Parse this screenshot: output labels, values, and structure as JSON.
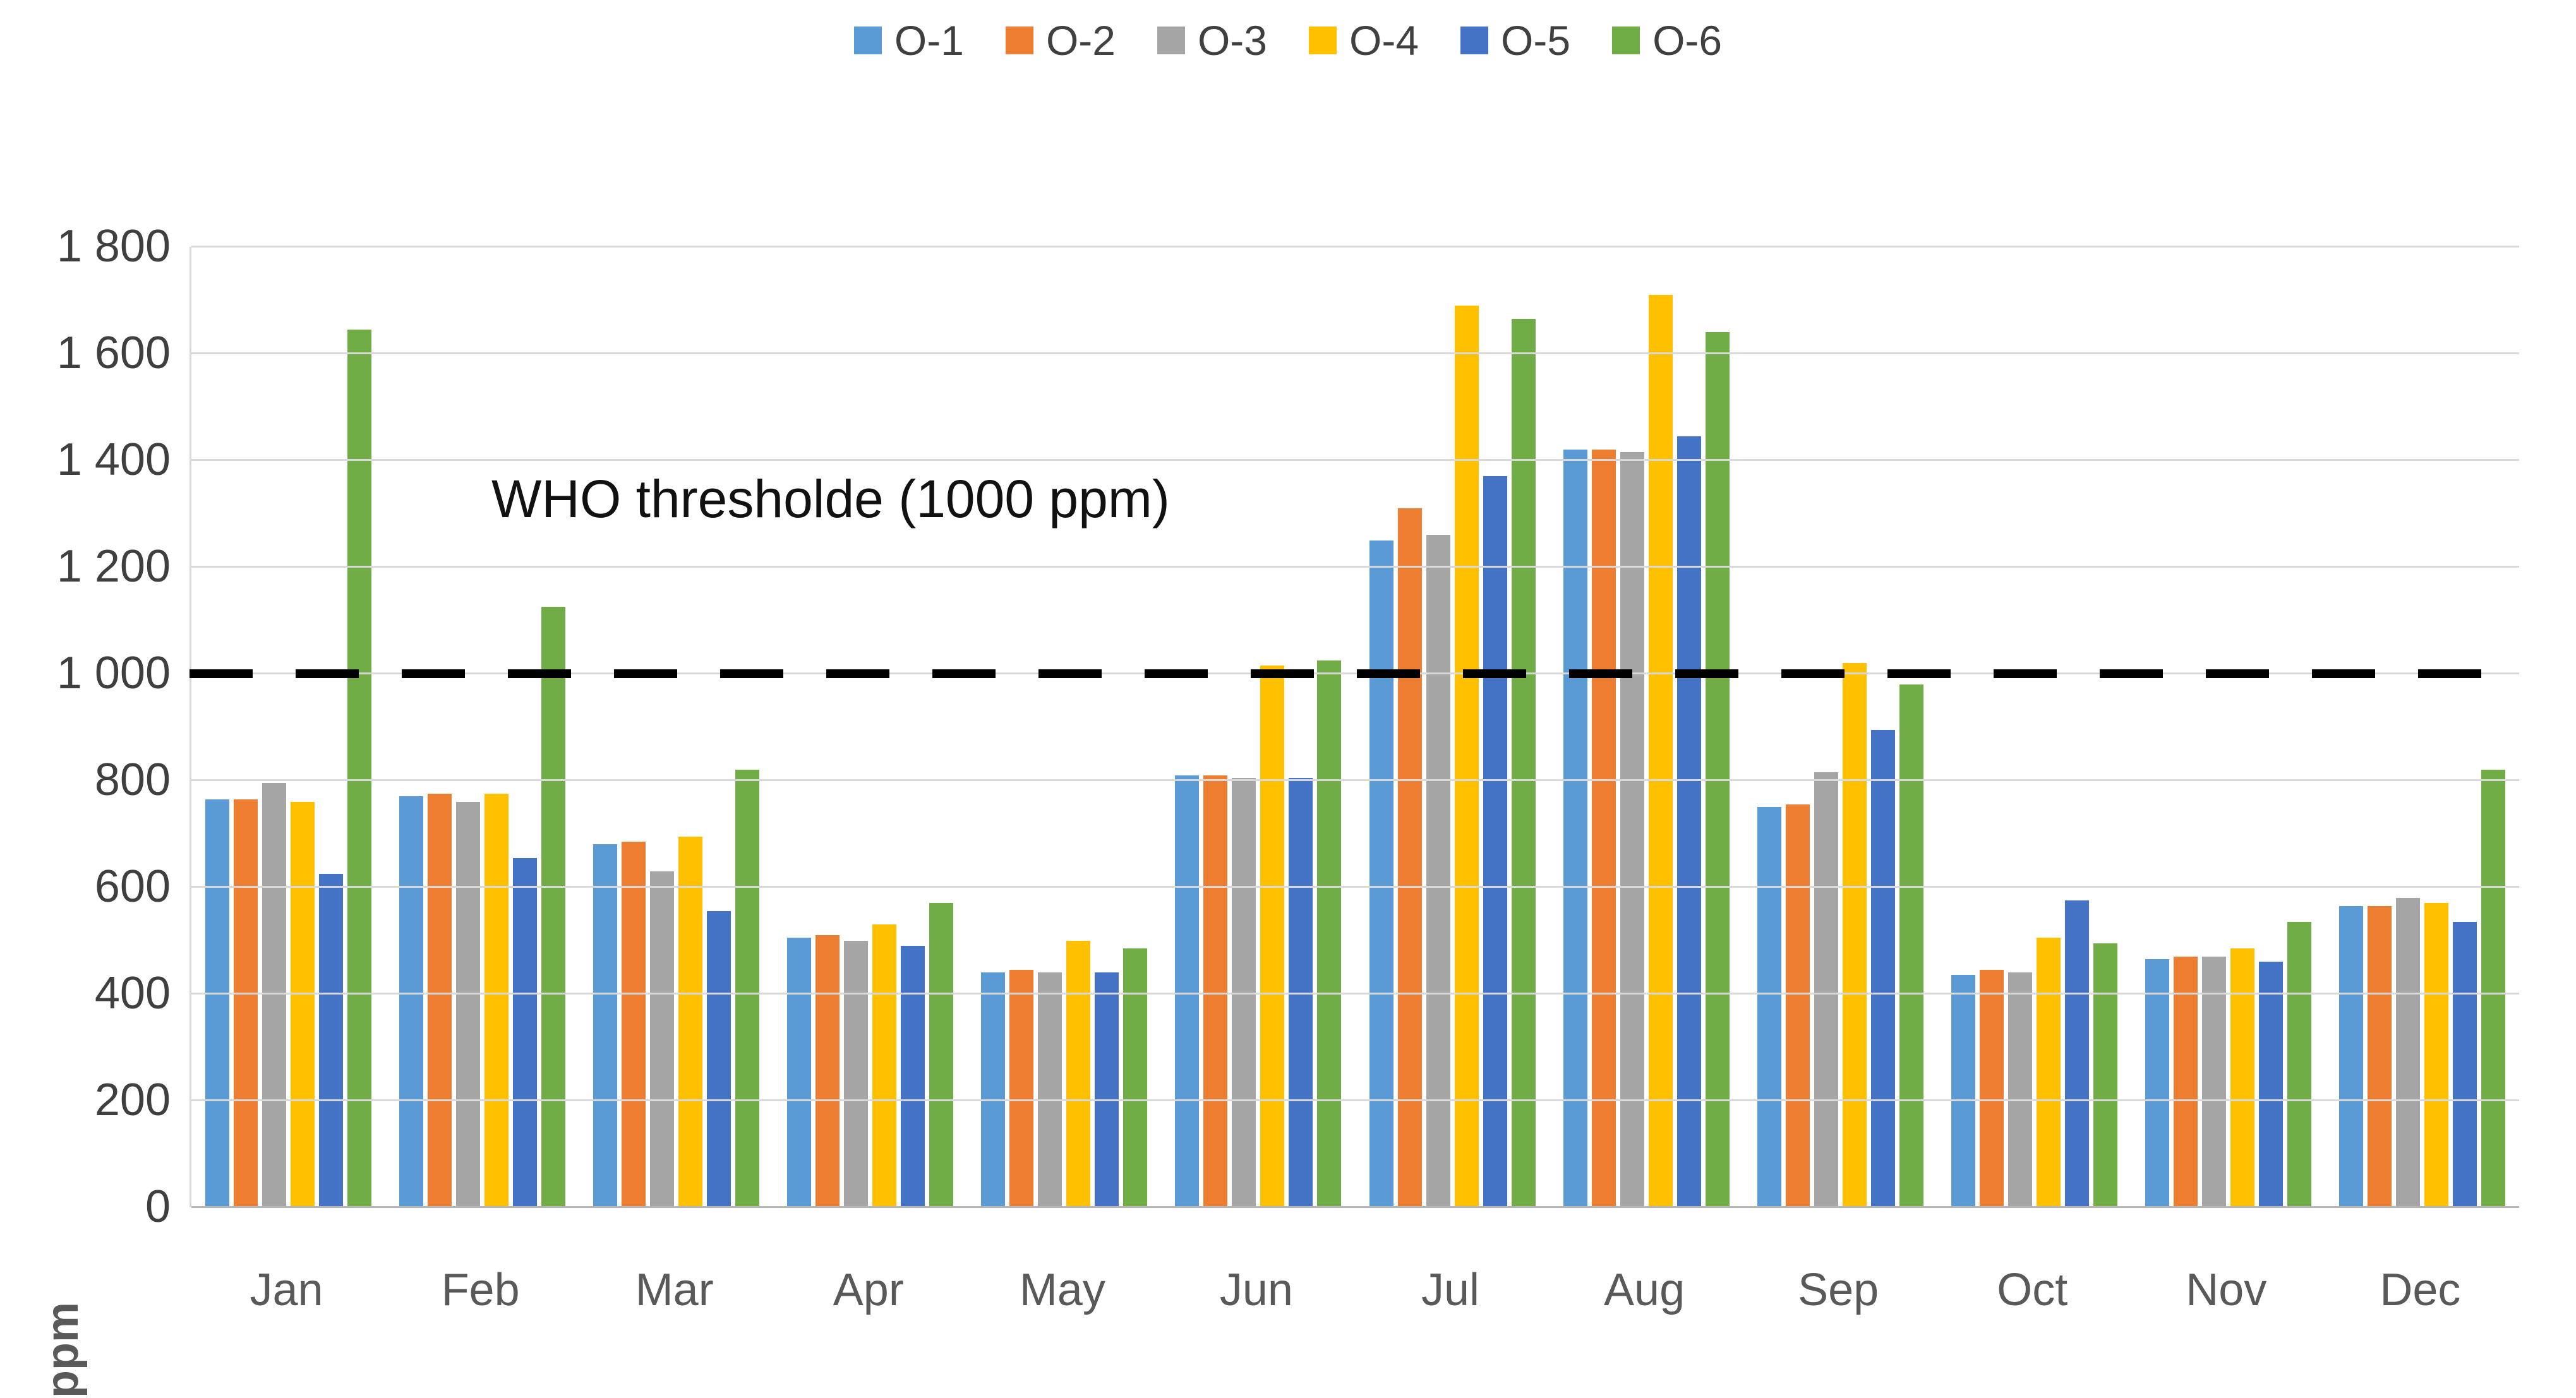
{
  "chart_data": {
    "type": "bar",
    "title": "",
    "xlabel": "",
    "ylabel": "ppm",
    "categories": [
      "Jan",
      "Feb",
      "Mar",
      "Apr",
      "May",
      "Jun",
      "Jul",
      "Aug",
      "Sep",
      "Oct",
      "Nov",
      "Dec"
    ],
    "series": [
      {
        "name": "O-1",
        "color": "#5B9BD5",
        "values": [
          765,
          770,
          680,
          505,
          440,
          810,
          1250,
          1420,
          750,
          435,
          465,
          565
        ]
      },
      {
        "name": "O-2",
        "color": "#ED7D31",
        "values": [
          765,
          775,
          685,
          510,
          445,
          810,
          1310,
          1420,
          755,
          445,
          470,
          565
        ]
      },
      {
        "name": "O-3",
        "color": "#A5A5A5",
        "values": [
          795,
          760,
          630,
          500,
          440,
          805,
          1260,
          1415,
          815,
          440,
          470,
          580
        ]
      },
      {
        "name": "O-4",
        "color": "#FFC000",
        "values": [
          760,
          775,
          695,
          530,
          500,
          1015,
          1690,
          1710,
          1020,
          505,
          485,
          570
        ]
      },
      {
        "name": "O-5",
        "color": "#4472C4",
        "values": [
          625,
          655,
          555,
          490,
          440,
          805,
          1370,
          1445,
          895,
          575,
          460,
          535
        ]
      },
      {
        "name": "O-6",
        "color": "#70AD47",
        "values": [
          1645,
          1125,
          820,
          570,
          485,
          1025,
          1665,
          1640,
          980,
          495,
          535,
          820
        ]
      }
    ],
    "ylim": [
      0,
      1800
    ],
    "ytick_interval": 200,
    "yticks": [
      {
        "value": 0,
        "label": "0"
      },
      {
        "value": 200,
        "label": "200"
      },
      {
        "value": 400,
        "label": "400"
      },
      {
        "value": 600,
        "label": "600"
      },
      {
        "value": 800,
        "label": "800"
      },
      {
        "value": 1000,
        "label": "1 000"
      },
      {
        "value": 1200,
        "label": "1 200"
      },
      {
        "value": 1400,
        "label": "1 400"
      },
      {
        "value": 1600,
        "label": "1 600"
      },
      {
        "value": 1800,
        "label": "1 800"
      }
    ],
    "grid": "horizontal",
    "legend_position": "top-center",
    "threshold": {
      "value": 1000,
      "style": "dashed",
      "color": "#000000",
      "label": "WHO thresholde (1000 ppm)"
    }
  },
  "annotations": {
    "who_label": "WHO thresholde (1000 ppm)",
    "y_axis_title": "ppm"
  }
}
